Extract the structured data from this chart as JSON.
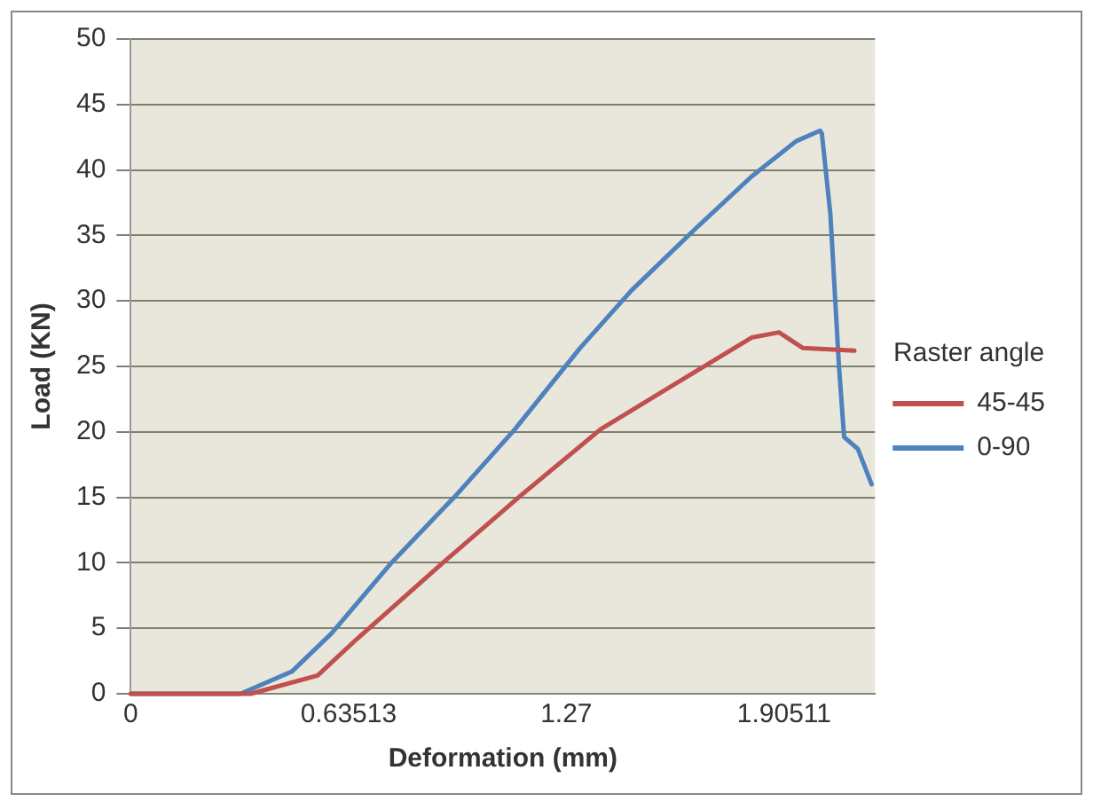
{
  "chart_data": {
    "type": "line",
    "xlabel": "Deformation (mm)",
    "ylabel": "Load (KN)",
    "legend_title": "Raster angle",
    "legend": "right",
    "grid": "y",
    "marker": "none",
    "line_style": "solid",
    "xlim": [
      0,
      2.17
    ],
    "xticks": [
      0,
      0.63513,
      1.27,
      1.90511
    ],
    "ylim": [
      0,
      50
    ],
    "yticks": [
      0,
      5,
      10,
      15,
      20,
      25,
      30,
      35,
      40,
      45,
      50
    ],
    "series": [
      {
        "name": "45-45",
        "color": "#c0504d",
        "x": [
          0,
          0.35,
          0.545,
          0.66,
          0.91,
          1.14,
          1.37,
          1.64,
          1.81,
          1.89,
          1.96,
          2.11
        ],
        "values": [
          0,
          0,
          1.4,
          4.2,
          10,
          15.2,
          20.2,
          24.5,
          27.2,
          27.6,
          26.4,
          26.2
        ]
      },
      {
        "name": "0-90",
        "color": "#4f81bd",
        "x": [
          0,
          0.32,
          0.47,
          0.585,
          0.76,
          0.95,
          1.12,
          1.31,
          1.46,
          1.65,
          1.81,
          1.94,
          2.01,
          2.015,
          2.04,
          2.065,
          2.08,
          2.12,
          2.16
        ],
        "values": [
          0,
          0,
          1.7,
          4.6,
          10,
          15.2,
          20.2,
          26.4,
          30.8,
          35.6,
          39.5,
          42.2,
          43,
          42.8,
          36.6,
          25,
          19.6,
          18.7,
          16
        ]
      }
    ]
  }
}
